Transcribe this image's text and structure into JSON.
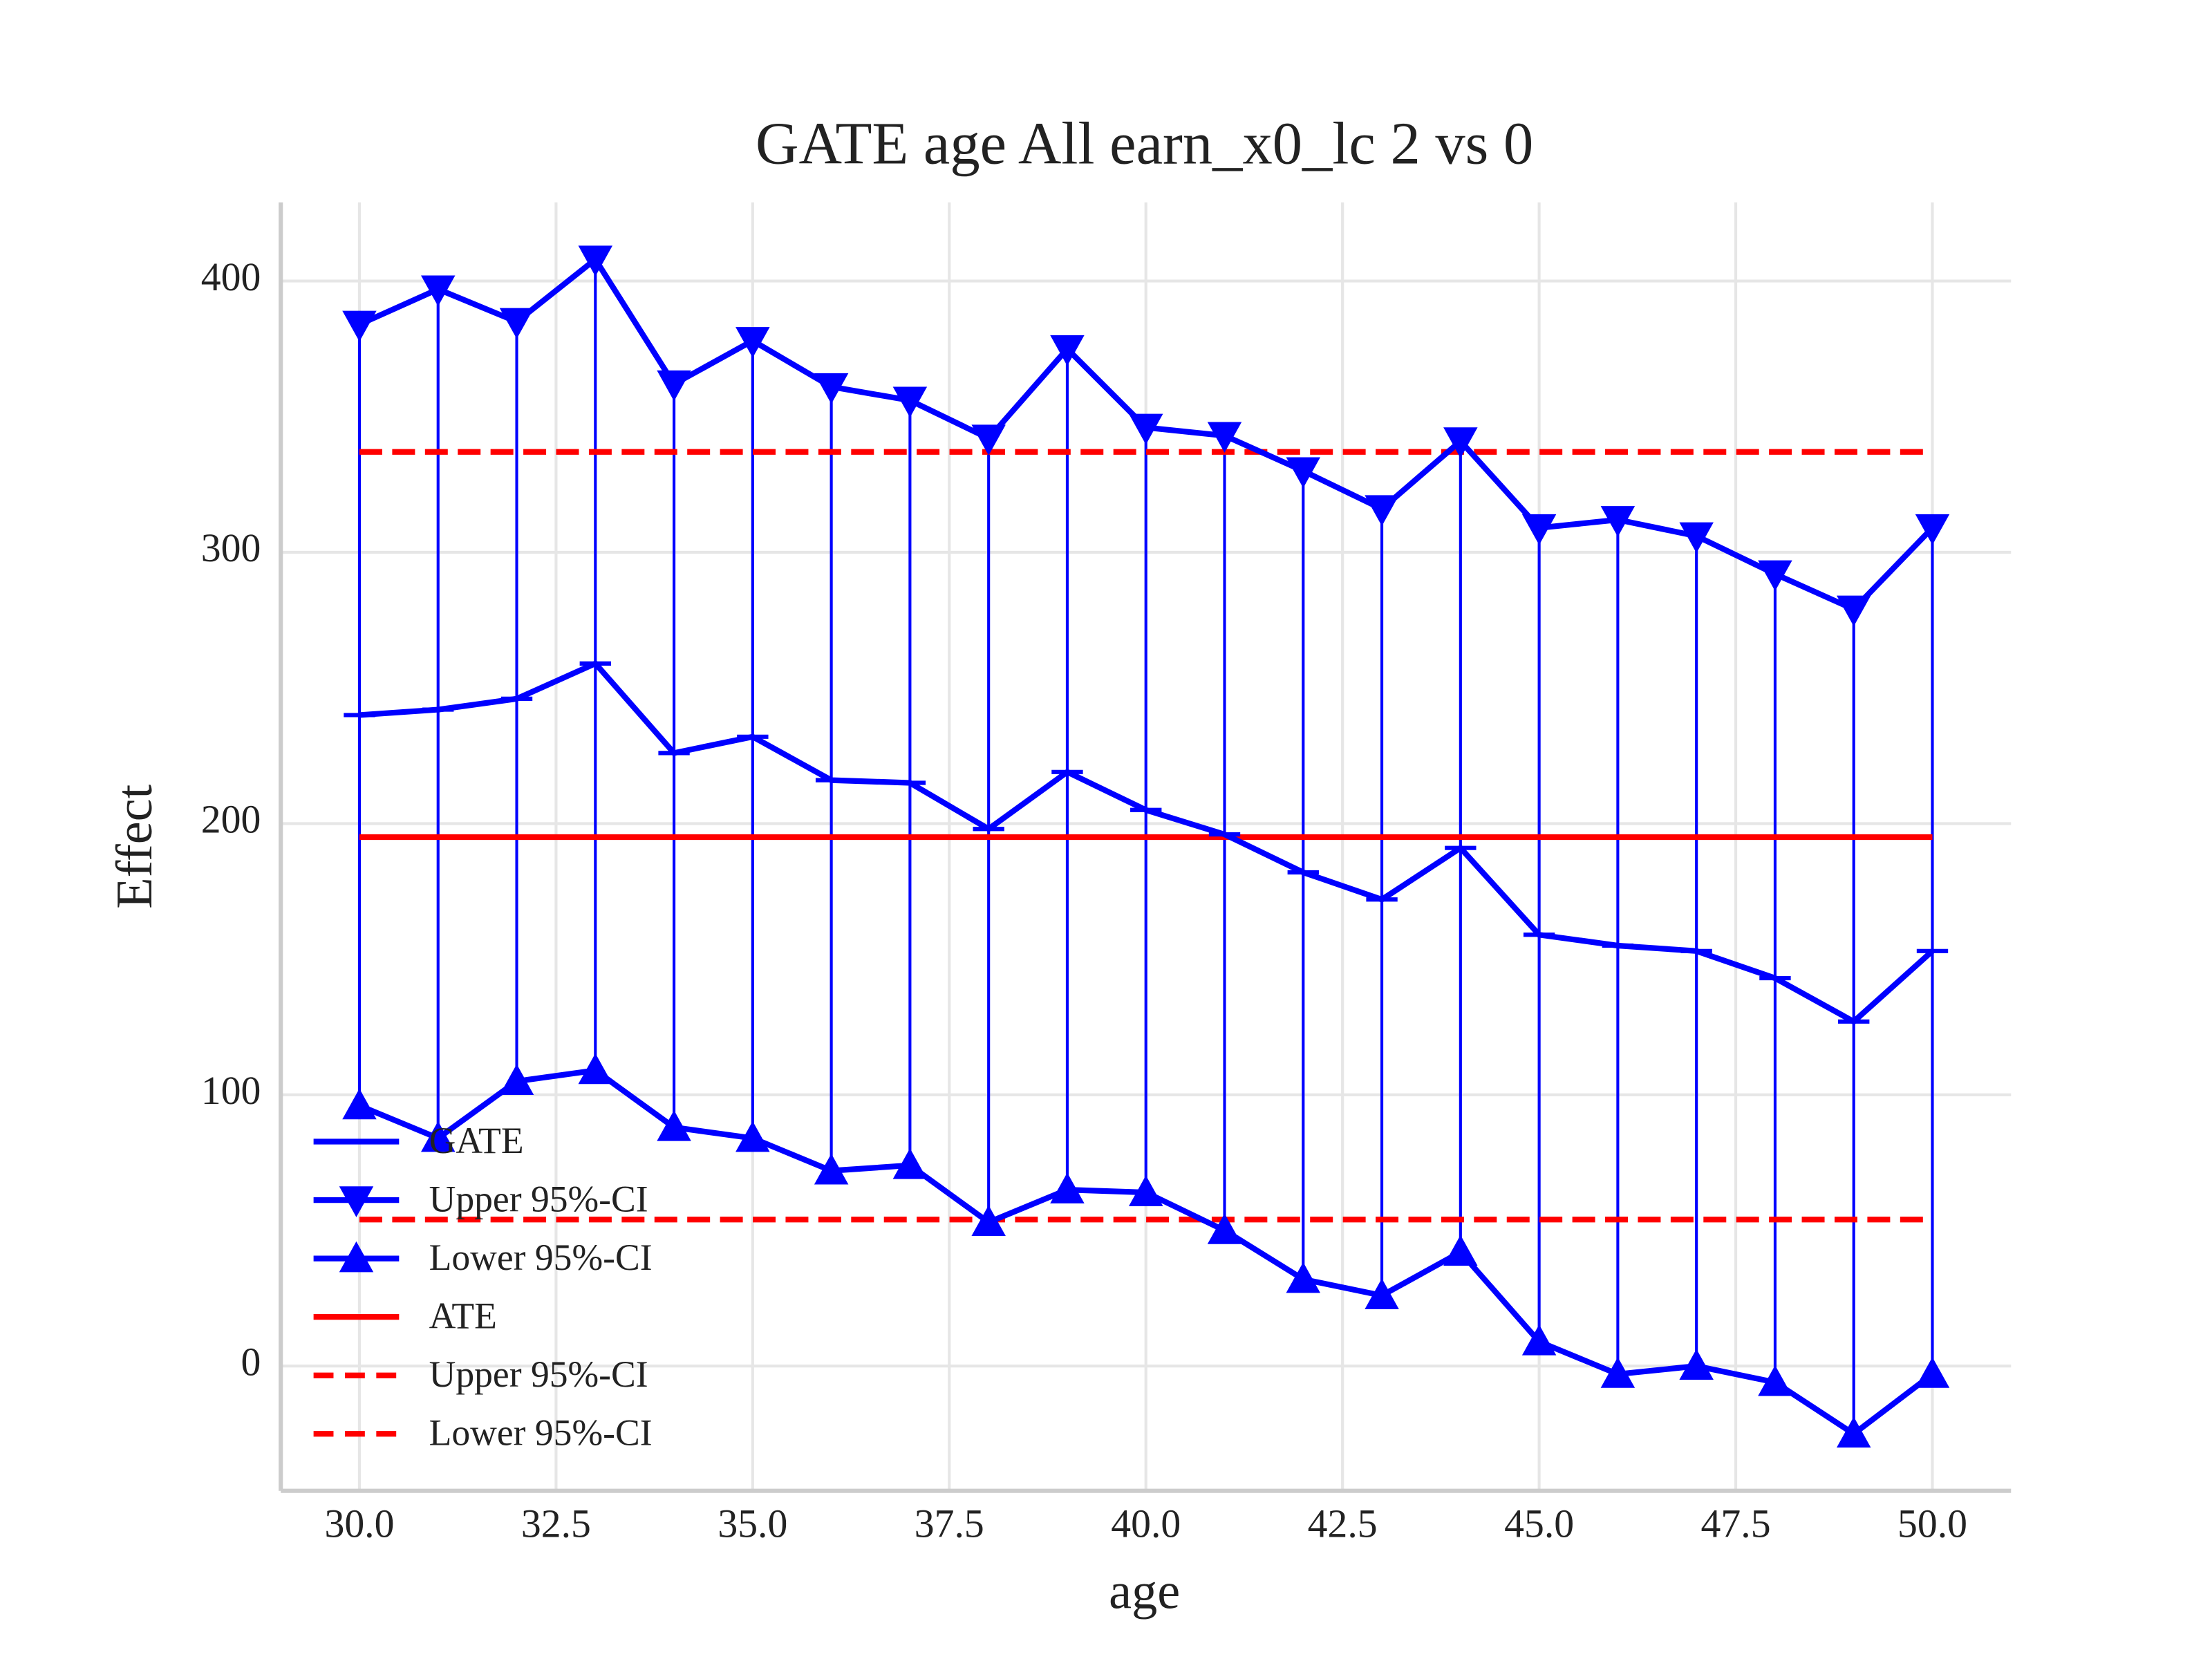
{
  "chart_data": {
    "type": "line",
    "title": "GATE age All earn_x0_lc  2 vs 0",
    "x_label": "age",
    "y_label": "Effect",
    "x": [
      30,
      31,
      32,
      33,
      34,
      35,
      36,
      37,
      38,
      39,
      40,
      41,
      42,
      43,
      44,
      45,
      46,
      47,
      48,
      49,
      50
    ],
    "series": [
      {
        "name": "GATE",
        "color": "#0000ff",
        "marker": "hline",
        "values": [
          240,
          242,
          246,
          259,
          226,
          232,
          216,
          215,
          198,
          219,
          205,
          196,
          182,
          172,
          191,
          159,
          155,
          153,
          143,
          127,
          153
        ]
      },
      {
        "name": "Upper 95%-CI",
        "color": "#0000ff",
        "marker": "triangle-down",
        "values": [
          384,
          397,
          385,
          408,
          362,
          378,
          361,
          356,
          342,
          375,
          346,
          343,
          330,
          316,
          341,
          309,
          312,
          306,
          292,
          279,
          309
        ]
      },
      {
        "name": "Lower 95%-CI",
        "color": "#0000ff",
        "marker": "triangle-up",
        "values": [
          96,
          84,
          105,
          109,
          88,
          84,
          72,
          74,
          53,
          65,
          64,
          50,
          32,
          26,
          42,
          9,
          -3,
          0,
          -6,
          -25,
          -3
        ]
      }
    ],
    "reference_lines": [
      {
        "name": "ATE",
        "value": 195,
        "color": "#ff0000",
        "style": "solid"
      },
      {
        "name": "Upper 95%-CI",
        "value": 337,
        "color": "#ff0000",
        "style": "dashed"
      },
      {
        "name": "Lower 95%-CI",
        "value": 54,
        "color": "#ff0000",
        "style": "dashed"
      }
    ],
    "xlim": [
      29,
      51
    ],
    "ylim": [
      -46,
      429
    ],
    "xticks": [
      {
        "value": 30,
        "label": "30.0"
      },
      {
        "value": 32.5,
        "label": "32.5"
      },
      {
        "value": 35,
        "label": "35.0"
      },
      {
        "value": 37.5,
        "label": "37.5"
      },
      {
        "value": 40,
        "label": "40.0"
      },
      {
        "value": 42.5,
        "label": "42.5"
      },
      {
        "value": 45,
        "label": "45.0"
      },
      {
        "value": 47.5,
        "label": "47.5"
      },
      {
        "value": 50,
        "label": "50.0"
      }
    ],
    "yticks": [
      0,
      100,
      200,
      300,
      400
    ],
    "grid": true,
    "legend": "lower left",
    "error_bars": true
  }
}
